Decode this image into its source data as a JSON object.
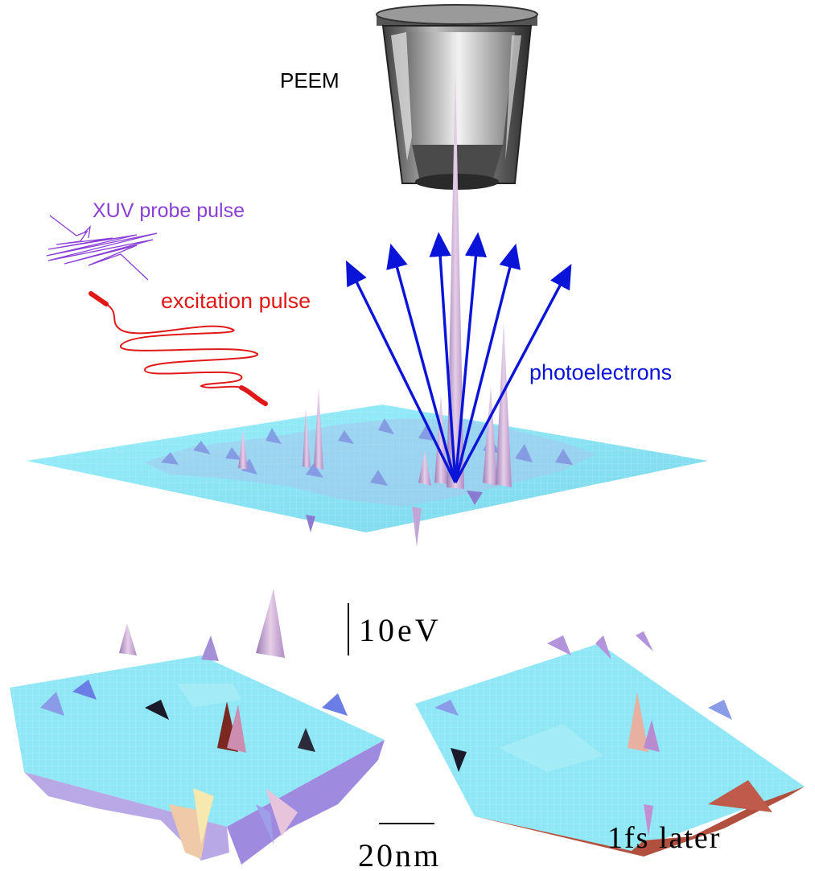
{
  "labels": {
    "peem": "PEEM",
    "xuv": "XUV probe pulse",
    "excitation": "excitation pulse",
    "photoelectrons": "photoelectrons",
    "energy_scale": "10eV",
    "length_scale": "20nm",
    "later": "1fs later"
  },
  "colors": {
    "xuv": "#8a3fd6",
    "excitation": "#e01818",
    "photoelectrons": "#0a14d8",
    "surface": "#8fe6f5",
    "peaks": "#c9a9dc"
  },
  "icons": {
    "detector": "peem-detector-icon",
    "arrows": "photoelectron-arrows"
  }
}
